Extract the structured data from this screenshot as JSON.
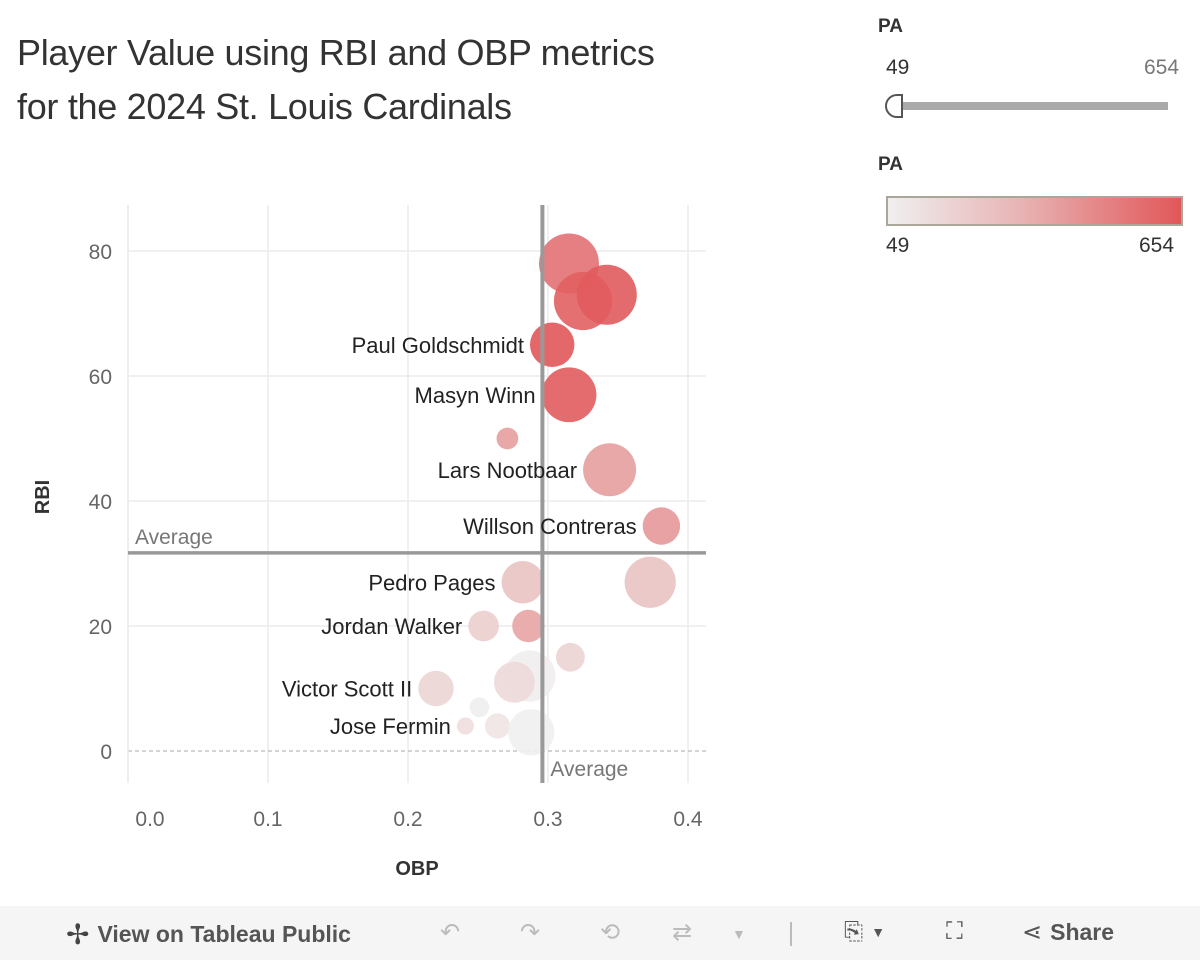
{
  "title": "Player Value using RBI and OBP metrics for the 2024 St. Louis Cardinals",
  "filter": {
    "label": "PA",
    "min": "49",
    "max": "654",
    "value_min": 49,
    "value_max": 654
  },
  "color_legend": {
    "label": "PA",
    "min": "49",
    "max": "654",
    "color_low": "#f0efef",
    "color_high": "#e15759"
  },
  "chart_data": {
    "type": "scatter",
    "xlabel": "OBP",
    "ylabel": "RBI",
    "xlim": [
      -0.015,
      0.41
    ],
    "ylim": [
      -5,
      87
    ],
    "xticks": [
      "0.0",
      "0.1",
      "0.2",
      "0.3",
      "0.4"
    ],
    "yticks": [
      "0",
      "20",
      "40",
      "60",
      "80"
    ],
    "grid": true,
    "reference_lines": [
      {
        "axis": "x",
        "value": 0.296,
        "label": "Average"
      },
      {
        "axis": "y",
        "value": 31.7,
        "label": "Average"
      }
    ],
    "points": [
      {
        "label": "",
        "obp": 0.315,
        "rbi": 78,
        "pa": 560,
        "size": 1.0
      },
      {
        "label": "",
        "obp": 0.325,
        "rbi": 72,
        "pa": 620,
        "size": 0.93
      },
      {
        "label": "",
        "obp": 0.342,
        "rbi": 73,
        "pa": 640,
        "size": 1.0
      },
      {
        "label": "Paul Goldschmidt",
        "obp": 0.303,
        "rbi": 65,
        "pa": 654,
        "size": 0.49
      },
      {
        "label": "Masyn Winn",
        "obp": 0.315,
        "rbi": 57,
        "pa": 637,
        "size": 0.81
      },
      {
        "label": "",
        "obp": 0.271,
        "rbi": 50,
        "pa": 400,
        "size": 0.07
      },
      {
        "label": "Lars Nootbaar",
        "obp": 0.344,
        "rbi": 45,
        "pa": 400,
        "size": 0.75
      },
      {
        "label": "Willson Contreras",
        "obp": 0.381,
        "rbi": 36,
        "pa": 420,
        "size": 0.32
      },
      {
        "label": "Pedro Pages",
        "obp": 0.282,
        "rbi": 27,
        "pa": 250,
        "size": 0.44
      },
      {
        "label": "",
        "obp": 0.373,
        "rbi": 27,
        "pa": 250,
        "size": 0.69
      },
      {
        "label": "Jordan Walker",
        "obp": 0.254,
        "rbi": 20,
        "pa": 200,
        "size": 0.19
      },
      {
        "label": "",
        "obp": 0.286,
        "rbi": 20,
        "pa": 380,
        "size": 0.22
      },
      {
        "label": "",
        "obp": 0.316,
        "rbi": 15,
        "pa": 180,
        "size": 0.16
      },
      {
        "label": "",
        "obp": 0.287,
        "rbi": 12,
        "pa": 60,
        "size": 0.69
      },
      {
        "label": "",
        "obp": 0.276,
        "rbi": 11,
        "pa": 150,
        "size": 0.4
      },
      {
        "label": "Victor Scott II",
        "obp": 0.22,
        "rbi": 10,
        "pa": 170,
        "size": 0.28
      },
      {
        "label": "",
        "obp": 0.251,
        "rbi": 7,
        "pa": 55,
        "size": 0.05
      },
      {
        "label": "",
        "obp": 0.264,
        "rbi": 4,
        "pa": 100,
        "size": 0.11
      },
      {
        "label": "Jose Fermin",
        "obp": 0.241,
        "rbi": 4,
        "pa": 130,
        "size": 0.03
      },
      {
        "label": "",
        "obp": 0.288,
        "rbi": 3,
        "pa": 49,
        "size": 0.54
      }
    ]
  },
  "toolbar": {
    "view_label": "View on Tableau Public",
    "share_label": "Share"
  }
}
